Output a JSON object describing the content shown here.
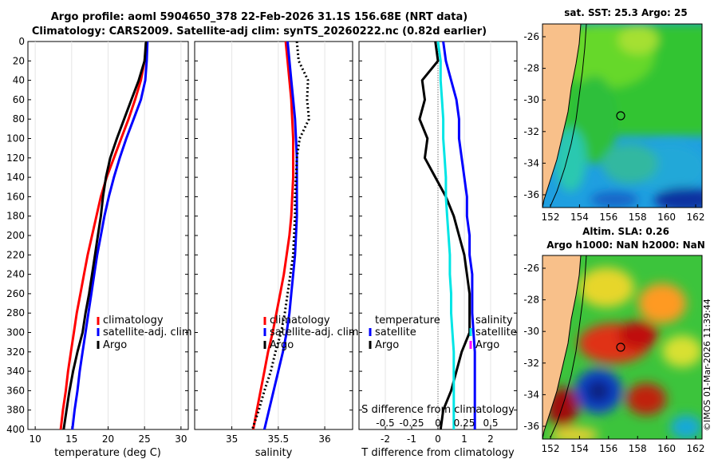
{
  "titles": {
    "line1": "Argo profile: aoml 5904650_378 22-Feb-2026 31.1S 156.68E (NRT data)",
    "line2": "Climatology: CARS2009. Satellite-adj clim: synTS_20260222.nc (0.82d earlier)"
  },
  "colors": {
    "climatology": "#ff0000",
    "satellite": "#0000ff",
    "argo": "#000000",
    "cyan": "#00e5e5",
    "magenta": "#ff00ff"
  },
  "chart_data": [
    {
      "type": "line",
      "name": "temperature-panel",
      "xlabel": "temperature (deg C)",
      "xlim": [
        9,
        31
      ],
      "ylim": [
        0,
        400
      ],
      "xticks": [
        10,
        15,
        20,
        25,
        30
      ],
      "yticks": [
        0,
        20,
        40,
        60,
        80,
        100,
        120,
        140,
        160,
        180,
        200,
        220,
        240,
        260,
        280,
        300,
        320,
        340,
        360,
        380,
        400
      ],
      "legend": [
        "climatology",
        "satellite-adj. clim",
        "Argo"
      ],
      "series": [
        {
          "name": "climatology",
          "color": "#ff0000",
          "style": "solid",
          "x": [
            25.3,
            25.0,
            24.5,
            23.7,
            22.8,
            21.8,
            20.8,
            19.8,
            19.0,
            18.4,
            17.8,
            17.2,
            16.7,
            16.2,
            15.7,
            15.3,
            14.9,
            14.5,
            14.2,
            13.8,
            13.5
          ],
          "y": [
            0,
            20,
            40,
            60,
            80,
            100,
            120,
            140,
            160,
            180,
            200,
            220,
            240,
            260,
            280,
            300,
            320,
            340,
            360,
            380,
            400
          ]
        },
        {
          "name": "satellite-adj. clim",
          "color": "#0000ff",
          "style": "solid",
          "x": [
            25.4,
            25.3,
            25.1,
            24.5,
            23.5,
            22.5,
            21.6,
            20.8,
            20.1,
            19.5,
            19.0,
            18.5,
            18.1,
            17.7,
            17.3,
            16.9,
            16.5,
            16.1,
            15.8,
            15.4,
            15.1
          ],
          "y": [
            0,
            20,
            40,
            60,
            80,
            100,
            120,
            140,
            160,
            180,
            200,
            220,
            240,
            260,
            280,
            300,
            320,
            340,
            360,
            380,
            400
          ]
        },
        {
          "name": "Argo",
          "color": "#000000",
          "style": "solid",
          "x": [
            25.2,
            25.0,
            24.2,
            23.2,
            22.2,
            21.2,
            20.3,
            19.7,
            19.3,
            19.0,
            18.6,
            18.2,
            17.8,
            17.4,
            16.9,
            16.5,
            15.8,
            15.2,
            14.7,
            14.3,
            13.9
          ],
          "y": [
            0,
            20,
            40,
            60,
            80,
            100,
            120,
            140,
            160,
            180,
            200,
            220,
            240,
            260,
            280,
            300,
            320,
            340,
            360,
            380,
            400
          ]
        }
      ]
    },
    {
      "type": "line",
      "name": "salinity-panel",
      "xlabel": "salinity",
      "xlim": [
        34.6,
        36.3
      ],
      "ylim": [
        0,
        400
      ],
      "xticks": [
        35,
        35.5,
        36
      ],
      "legend": [
        "climatology",
        "satellite-adj. clim",
        "Argo"
      ],
      "series": [
        {
          "name": "climatology",
          "color": "#ff0000",
          "style": "solid",
          "x": [
            35.58,
            35.6,
            35.62,
            35.64,
            35.65,
            35.66,
            35.66,
            35.66,
            35.65,
            35.64,
            35.62,
            35.59,
            35.56,
            35.52,
            35.48,
            35.44,
            35.39,
            35.35,
            35.31,
            35.27,
            35.23
          ],
          "y": [
            0,
            20,
            40,
            60,
            80,
            100,
            120,
            140,
            160,
            180,
            200,
            220,
            240,
            260,
            280,
            300,
            320,
            340,
            360,
            380,
            400
          ]
        },
        {
          "name": "satellite-adj. clim",
          "color": "#0000ff",
          "style": "solid",
          "x": [
            35.6,
            35.62,
            35.64,
            35.66,
            35.68,
            35.69,
            35.7,
            35.7,
            35.7,
            35.7,
            35.69,
            35.68,
            35.66,
            35.64,
            35.62,
            35.59,
            35.55,
            35.5,
            35.45,
            35.4,
            35.35
          ],
          "y": [
            0,
            20,
            40,
            60,
            80,
            100,
            120,
            140,
            160,
            180,
            200,
            220,
            240,
            260,
            280,
            300,
            320,
            340,
            360,
            380,
            400
          ]
        },
        {
          "name": "Argo",
          "color": "#000000",
          "style": "dotted",
          "x": [
            35.7,
            35.72,
            35.82,
            35.81,
            35.83,
            35.73,
            35.7,
            35.69,
            35.68,
            35.68,
            35.67,
            35.66,
            35.63,
            35.6,
            35.57,
            35.53,
            35.47,
            35.42,
            35.35,
            35.29,
            35.22
          ],
          "y": [
            0,
            20,
            40,
            60,
            80,
            100,
            120,
            140,
            160,
            180,
            200,
            220,
            240,
            260,
            280,
            300,
            320,
            340,
            360,
            380,
            400
          ]
        }
      ]
    },
    {
      "type": "line",
      "name": "difference-panel",
      "xlabel": "T difference from climatology",
      "x2label": "S difference from climatology",
      "xlim": [
        -3,
        3
      ],
      "ylim": [
        0,
        400
      ],
      "xticks": [
        -2,
        -1,
        0,
        1,
        2
      ],
      "xtick_labels": [
        "-2",
        "-1",
        "0",
        "1",
        "2"
      ],
      "x2tick_labels": [
        "-0.5",
        "-0.25",
        "0",
        "0.25",
        "0.5"
      ],
      "legend_left": [
        "temperature",
        "satellite",
        "Argo"
      ],
      "legend_right": [
        "salinity",
        "satellite",
        "Argo"
      ],
      "series": [
        {
          "name": "T satellite",
          "color": "#0000ff",
          "style": "solid",
          "x": [
            0.2,
            0.3,
            0.5,
            0.7,
            0.8,
            0.8,
            0.9,
            1.0,
            1.1,
            1.1,
            1.2,
            1.2,
            1.3,
            1.3,
            1.3,
            1.35,
            1.4,
            1.4,
            1.4,
            1.4,
            1.4
          ],
          "y": [
            0,
            20,
            40,
            60,
            80,
            100,
            120,
            140,
            160,
            180,
            200,
            220,
            240,
            260,
            280,
            300,
            320,
            340,
            360,
            380,
            400
          ]
        },
        {
          "name": "T Argo",
          "color": "#000000",
          "style": "solid",
          "x": [
            -0.1,
            0.0,
            -0.6,
            -0.5,
            -0.7,
            -0.4,
            -0.5,
            -0.1,
            0.3,
            0.6,
            0.8,
            1.0,
            1.1,
            1.2,
            1.2,
            1.2,
            0.9,
            0.7,
            0.5,
            0.2,
            0.1
          ],
          "y": [
            0,
            20,
            40,
            60,
            80,
            100,
            120,
            140,
            160,
            180,
            200,
            220,
            240,
            260,
            280,
            300,
            320,
            340,
            360,
            380,
            400
          ]
        },
        {
          "name": "S satellite",
          "color": "#00e5e5",
          "style": "solid",
          "x": [
            0.0,
            0.1,
            0.1,
            0.15,
            0.2,
            0.2,
            0.25,
            0.3,
            0.3,
            0.35,
            0.4,
            0.45,
            0.45,
            0.5,
            0.5,
            0.55,
            0.6,
            0.6,
            0.6,
            0.6,
            0.6
          ],
          "y": [
            0,
            20,
            40,
            60,
            80,
            100,
            120,
            140,
            160,
            180,
            200,
            220,
            240,
            260,
            280,
            300,
            320,
            340,
            360,
            380,
            400
          ]
        },
        {
          "name": "S Argo",
          "color": "#ff00ff",
          "style": "solid",
          "x": [],
          "y": []
        }
      ]
    }
  ],
  "maps": {
    "sst_title": "sat. SST: 25.3 Argo: 25",
    "sla_title1": "Altim. SLA: 0.26",
    "sla_title2": "Argo h1000: NaN h2000: NaN",
    "lon_ticks": [
      "152",
      "154",
      "156",
      "158",
      "160",
      "162"
    ],
    "lat_ticks": [
      "-26",
      "-28",
      "-30",
      "-32",
      "-34",
      "-36"
    ],
    "land_color": "#f8c08a"
  },
  "stamp": "©IMOS 01-Mar-2026 11:39:44"
}
